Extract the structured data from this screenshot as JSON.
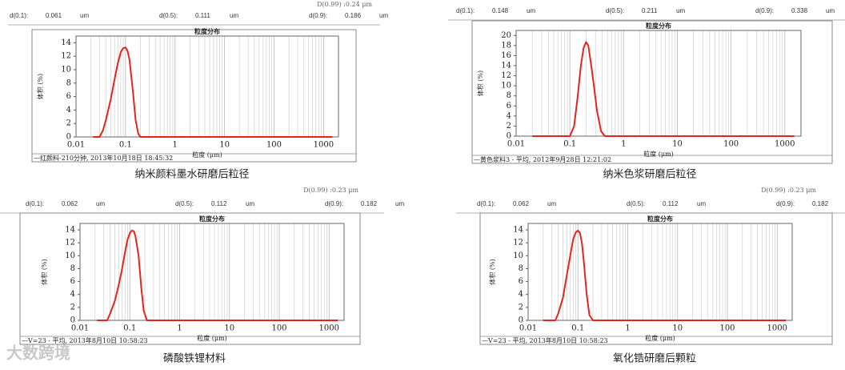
{
  "chart_data": [
    {
      "type": "line",
      "title": "粒度分布",
      "ylabel": "体积 (%)",
      "xlabel": "粒度 (μm)",
      "stats": [
        {
          "label": "d(0.1):",
          "value": 0.061,
          "unit": "um"
        },
        {
          "label": "d(0.5):",
          "value": 0.111,
          "unit": "um"
        },
        {
          "label": "d(0.9):",
          "value": 0.186,
          "unit": "um"
        }
      ],
      "note": "D(0.99) :0.24 μm",
      "footer": "—红颜料-210分钟, 2013年10月18日 18:45:32",
      "caption": "纳米颜料墨水研磨后粒径",
      "log_x": true,
      "grid": true,
      "color": "#e3261d",
      "xlim": [
        0.01,
        2000
      ],
      "xticks": [
        0.01,
        0.1,
        1,
        10,
        100,
        1000
      ],
      "ylim": [
        0,
        15
      ],
      "yticks": [
        0,
        2,
        4,
        6,
        8,
        10,
        12,
        14
      ],
      "x": [
        0.022,
        0.03,
        0.035,
        0.04,
        0.05,
        0.06,
        0.07,
        0.08,
        0.09,
        0.1,
        0.11,
        0.12,
        0.14,
        0.16,
        0.18,
        0.2,
        1500
      ],
      "values": [
        0,
        0,
        1,
        2.5,
        5.5,
        8.5,
        11,
        12.6,
        13.2,
        13.3,
        12.8,
        11.5,
        7,
        2.5,
        0.5,
        0,
        0
      ]
    },
    {
      "type": "line",
      "title": "粒度分布",
      "ylabel": "体积 (%)",
      "xlabel": "粒度 (μm)",
      "stats": [
        {
          "label": "d(0.1):",
          "value": 0.148,
          "unit": "um"
        },
        {
          "label": "d(0.5):",
          "value": 0.211,
          "unit": "um"
        },
        {
          "label": "d(0.9):",
          "value": 0.338,
          "unit": "um"
        }
      ],
      "footer": "—黄色浆料3 - 平均, 2012年9月28日 12:21:02",
      "caption": "纳米色浆研磨后粒径",
      "log_x": true,
      "grid": true,
      "color": "#e3261d",
      "xlim": [
        0.01,
        2000
      ],
      "xticks": [
        0.01,
        0.1,
        1,
        10,
        100,
        1000
      ],
      "ylim": [
        0,
        21
      ],
      "yticks": [
        0,
        2,
        4,
        6,
        8,
        10,
        12,
        14,
        16,
        18,
        20
      ],
      "x": [
        0.02,
        0.1,
        0.12,
        0.14,
        0.16,
        0.18,
        0.2,
        0.22,
        0.25,
        0.28,
        0.32,
        0.38,
        0.45,
        1500
      ],
      "values": [
        0,
        0,
        2,
        8,
        14,
        17.5,
        18.7,
        18,
        14,
        10,
        5,
        1,
        0,
        0
      ]
    },
    {
      "type": "line",
      "title": "粒度分布",
      "ylabel": "体积 (%)",
      "xlabel": "粒度 (μm)",
      "stats": [
        {
          "label": "d(0.1):",
          "value": 0.062,
          "unit": "um"
        },
        {
          "label": "d(0.5):",
          "value": 0.112,
          "unit": "um"
        },
        {
          "label": "d(0.9):",
          "value": 0.182,
          "unit": "um"
        }
      ],
      "note": "D(0.99) :0.23 μm",
      "footer": "—V=23 - 平均, 2013年8月10日 10:58:23",
      "caption": "磷酸铁锂材料",
      "log_x": true,
      "grid": true,
      "color": "#e3261d",
      "xlim": [
        0.01,
        2000
      ],
      "xticks": [
        0.01,
        0.1,
        1,
        10,
        100,
        1000
      ],
      "ylim": [
        0,
        15
      ],
      "yticks": [
        0,
        2,
        4,
        6,
        8,
        10,
        12,
        14
      ],
      "x": [
        0.022,
        0.035,
        0.04,
        0.05,
        0.06,
        0.07,
        0.08,
        0.09,
        0.1,
        0.11,
        0.12,
        0.13,
        0.15,
        0.17,
        0.19,
        0.22,
        1500
      ],
      "values": [
        0,
        0,
        1,
        3,
        5.5,
        8,
        10.5,
        12.5,
        13.5,
        13.9,
        13.8,
        13,
        10,
        5,
        1.5,
        0,
        0
      ]
    },
    {
      "type": "line",
      "title": "粒度分布",
      "ylabel": "体积 (%)",
      "xlabel": "粒度 (μm)",
      "stats": [
        {
          "label": "d(0.1):",
          "value": 0.062,
          "unit": "um"
        },
        {
          "label": "d(0.5):",
          "value": 0.112,
          "unit": "um"
        },
        {
          "label": "d(0.9):",
          "value": 0.182,
          "unit": "um"
        }
      ],
      "note": "D(0.99) :0.23 μm",
      "footer": "—V=23 - 平均, 2013年8月10日 10:58:23",
      "caption": "氧化锆研磨后颗粒",
      "log_x": true,
      "grid": true,
      "color": "#e3261d",
      "xlim": [
        0.01,
        2000
      ],
      "xticks": [
        0.01,
        0.1,
        1,
        10,
        100,
        1000
      ],
      "ylim": [
        0,
        15
      ],
      "yticks": [
        0,
        2,
        4,
        6,
        8,
        10,
        12,
        14
      ],
      "x": [
        0.02,
        0.035,
        0.04,
        0.05,
        0.06,
        0.07,
        0.08,
        0.09,
        0.1,
        0.11,
        0.12,
        0.13,
        0.15,
        0.17,
        0.2,
        1500
      ],
      "values": [
        0,
        0,
        1,
        3.5,
        7,
        10,
        12.5,
        13.6,
        13.9,
        13.5,
        12,
        9.5,
        4,
        0.8,
        0,
        0
      ]
    }
  ],
  "watermark": "大数跨境"
}
